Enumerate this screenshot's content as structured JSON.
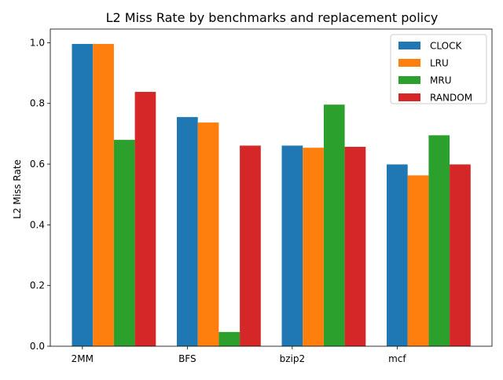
{
  "chart_data": {
    "type": "bar",
    "title": "L2 Miss Rate by benchmarks and replacement policy",
    "xlabel": "",
    "ylabel": "L2 Miss Rate",
    "categories": [
      "2MM",
      "BFS",
      "bzip2",
      "mcf"
    ],
    "series": [
      {
        "name": "CLOCK",
        "color": "#1f77b4",
        "values": [
          0.996,
          0.755,
          0.661,
          0.599
        ]
      },
      {
        "name": "LRU",
        "color": "#ff7f0e",
        "values": [
          0.996,
          0.737,
          0.654,
          0.563
        ]
      },
      {
        "name": "MRU",
        "color": "#2ca02c",
        "values": [
          0.68,
          0.047,
          0.796,
          0.695
        ]
      },
      {
        "name": "RANDOM",
        "color": "#d62728",
        "values": [
          0.838,
          0.661,
          0.657,
          0.599
        ]
      }
    ],
    "ylim": [
      0,
      1.045
    ],
    "yticks": [
      "0.0",
      "0.2",
      "0.4",
      "0.6",
      "0.8",
      "1.0"
    ],
    "grid": false,
    "legend_position": "top-right"
  }
}
